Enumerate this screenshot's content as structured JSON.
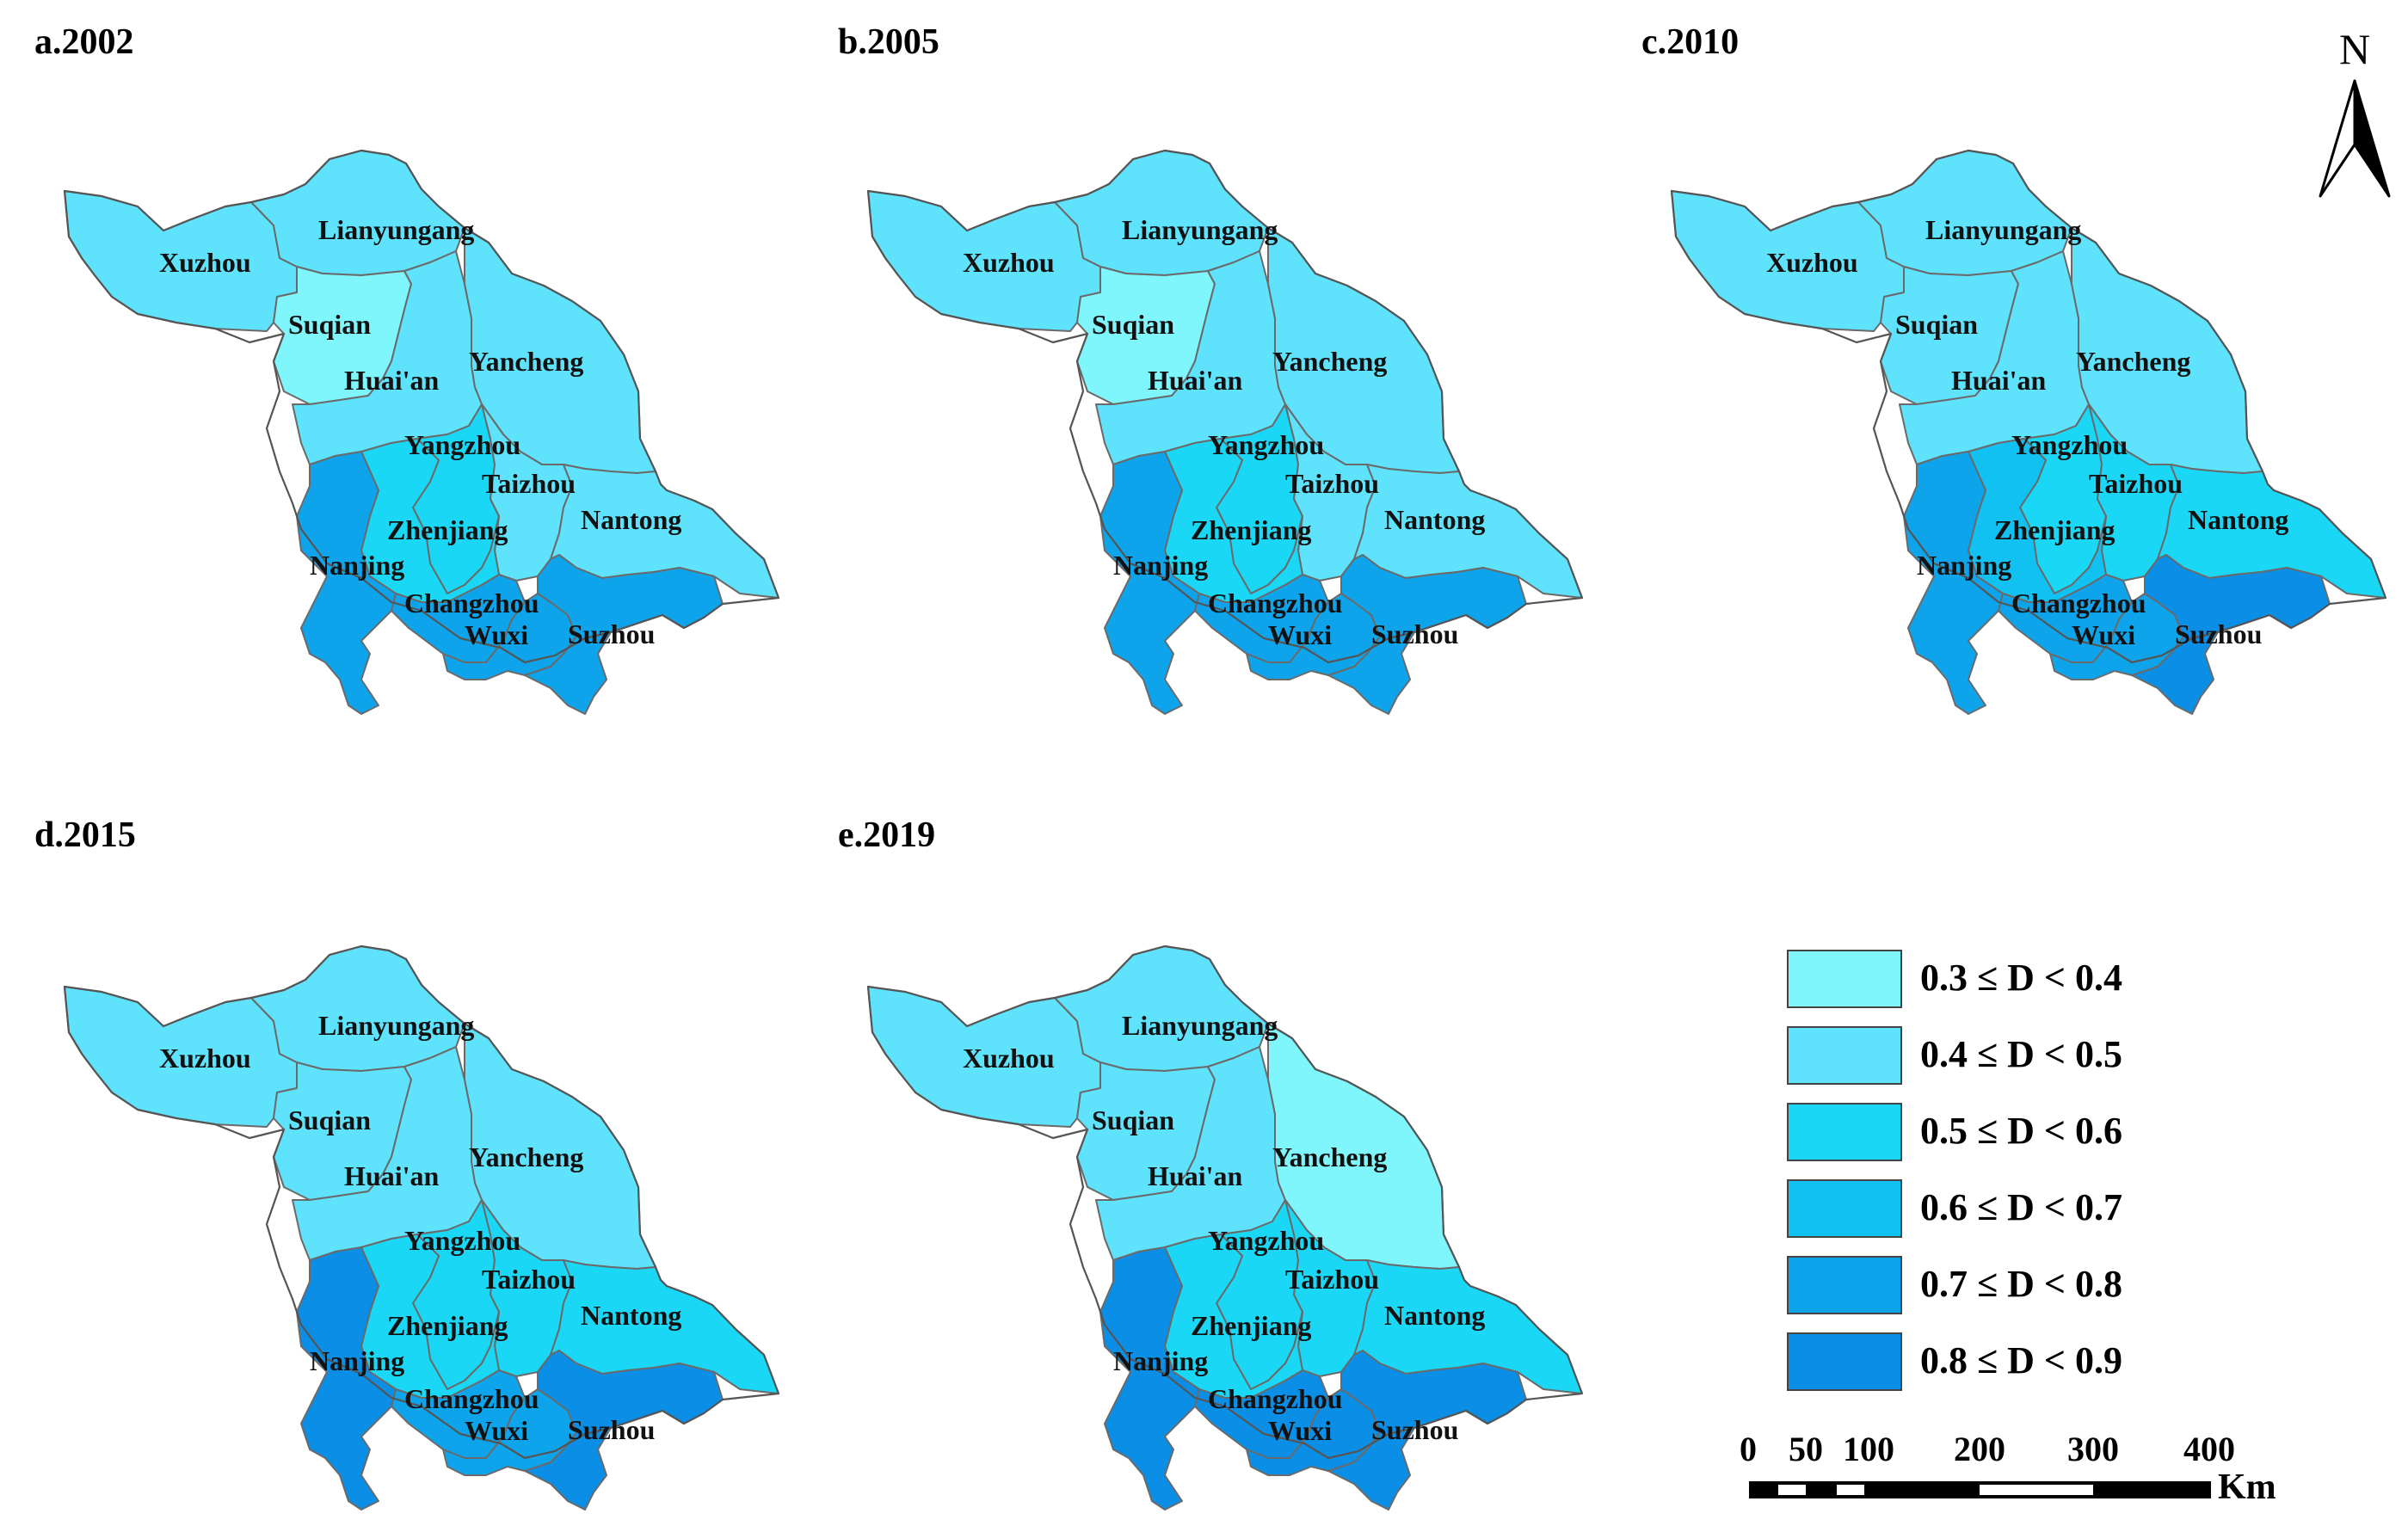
{
  "panels": [
    {
      "label": "a.2002",
      "classes": {
        "Xuzhou": 1,
        "Lianyungang": 1,
        "Suqian": 0,
        "Huai'an": 1,
        "Yancheng": 1,
        "Yangzhou": 2,
        "Taizhou": 1,
        "Nantong": 1,
        "Zhenjiang": 2,
        "Nanjing": 4,
        "Changzhou": 4,
        "Wuxi": 4,
        "Suzhou": 4
      }
    },
    {
      "label": "b.2005",
      "classes": {
        "Xuzhou": 1,
        "Lianyungang": 1,
        "Suqian": 0,
        "Huai'an": 1,
        "Yancheng": 1,
        "Yangzhou": 2,
        "Taizhou": 1,
        "Nantong": 1,
        "Zhenjiang": 2,
        "Nanjing": 4,
        "Changzhou": 4,
        "Wuxi": 4,
        "Suzhou": 4
      }
    },
    {
      "label": "c.2010",
      "classes": {
        "Xuzhou": 1,
        "Lianyungang": 1,
        "Suqian": 1,
        "Huai'an": 1,
        "Yancheng": 1,
        "Yangzhou": 2,
        "Taizhou": 2,
        "Nantong": 2,
        "Zhenjiang": 3,
        "Nanjing": 4,
        "Changzhou": 4,
        "Wuxi": 4,
        "Suzhou": 5
      }
    },
    {
      "label": "d.2015",
      "classes": {
        "Xuzhou": 1,
        "Lianyungang": 1,
        "Suqian": 1,
        "Huai'an": 1,
        "Yancheng": 1,
        "Yangzhou": 2,
        "Taizhou": 2,
        "Nantong": 2,
        "Zhenjiang": 2,
        "Nanjing": 5,
        "Changzhou": 4,
        "Wuxi": 4,
        "Suzhou": 5
      }
    },
    {
      "label": "e.2019",
      "classes": {
        "Xuzhou": 1,
        "Lianyungang": 1,
        "Suqian": 1,
        "Huai'an": 1,
        "Yancheng": 0,
        "Yangzhou": 2,
        "Taizhou": 2,
        "Nantong": 2,
        "Zhenjiang": 2,
        "Nanjing": 5,
        "Changzhou": 5,
        "Wuxi": 5,
        "Suzhou": 5
      }
    }
  ],
  "cities": [
    "Xuzhou",
    "Lianyungang",
    "Suqian",
    "Huai'an",
    "Yancheng",
    "Yangzhou",
    "Taizhou",
    "Nantong",
    "Zhenjiang",
    "Nanjing",
    "Changzhou",
    "Wuxi",
    "Suzhou"
  ],
  "legend": {
    "items": [
      {
        "label": "0.3 ≤ D < 0.4",
        "color": "#7ff6fb"
      },
      {
        "label": "0.4 ≤ D < 0.5",
        "color": "#5fe2fb"
      },
      {
        "label": "0.5 ≤ D < 0.6",
        "color": "#1ad8f5"
      },
      {
        "label": "0.6 ≤ D < 0.7",
        "color": "#10c1f2"
      },
      {
        "label": "0.7 ≤ D < 0.8",
        "color": "#0ea4ec"
      },
      {
        "label": "0.8 ≤ D < 0.9",
        "color": "#0a8ee6"
      }
    ]
  },
  "north_arrow": {
    "label": "N"
  },
  "scale_bar": {
    "ticks": [
      "0",
      "50",
      "100",
      "200",
      "300",
      "400"
    ],
    "unit": "Km"
  }
}
